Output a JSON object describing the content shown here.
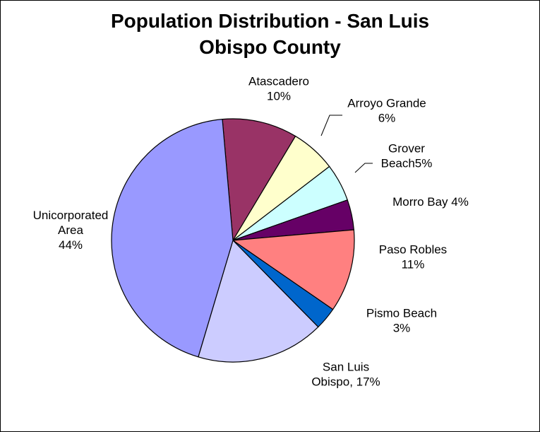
{
  "chart_data": {
    "type": "pie",
    "title": [
      "Population Distribution - San Luis",
      "Obispo County"
    ],
    "slices": [
      {
        "name": "Atascadero",
        "value": 10,
        "color": "#993366",
        "label_lines": [
          "Atascadero",
          "10%"
        ]
      },
      {
        "name": "Arroyo Grande",
        "value": 6,
        "color": "#FFFFCC",
        "label_lines": [
          "Arroyo Grande",
          "6%"
        ]
      },
      {
        "name": "Grover Beach",
        "value": 5,
        "color": "#CCFFFF",
        "label_lines": [
          "Grover",
          "Beach5%"
        ]
      },
      {
        "name": "Morro Bay",
        "value": 4,
        "color": "#660066",
        "label_lines": [
          "Morro Bay 4%"
        ]
      },
      {
        "name": "Paso Robles",
        "value": 11,
        "color": "#FF8080",
        "label_lines": [
          "Paso Robles",
          "11%"
        ]
      },
      {
        "name": "Pismo Beach",
        "value": 3,
        "color": "#0066CC",
        "label_lines": [
          "Pismo Beach",
          "3%"
        ]
      },
      {
        "name": "San Luis Obispo",
        "value": 17,
        "color": "#CCCCFF",
        "label_lines": [
          "San Luis",
          "Obispo, 17%"
        ]
      },
      {
        "name": "Unicorporated Area",
        "value": 44,
        "color": "#9999FF",
        "label_lines": [
          "Unicorporated",
          "Area",
          "44%"
        ]
      }
    ],
    "start_angle_deg": -5,
    "direction": "clockwise",
    "legend": "none"
  }
}
